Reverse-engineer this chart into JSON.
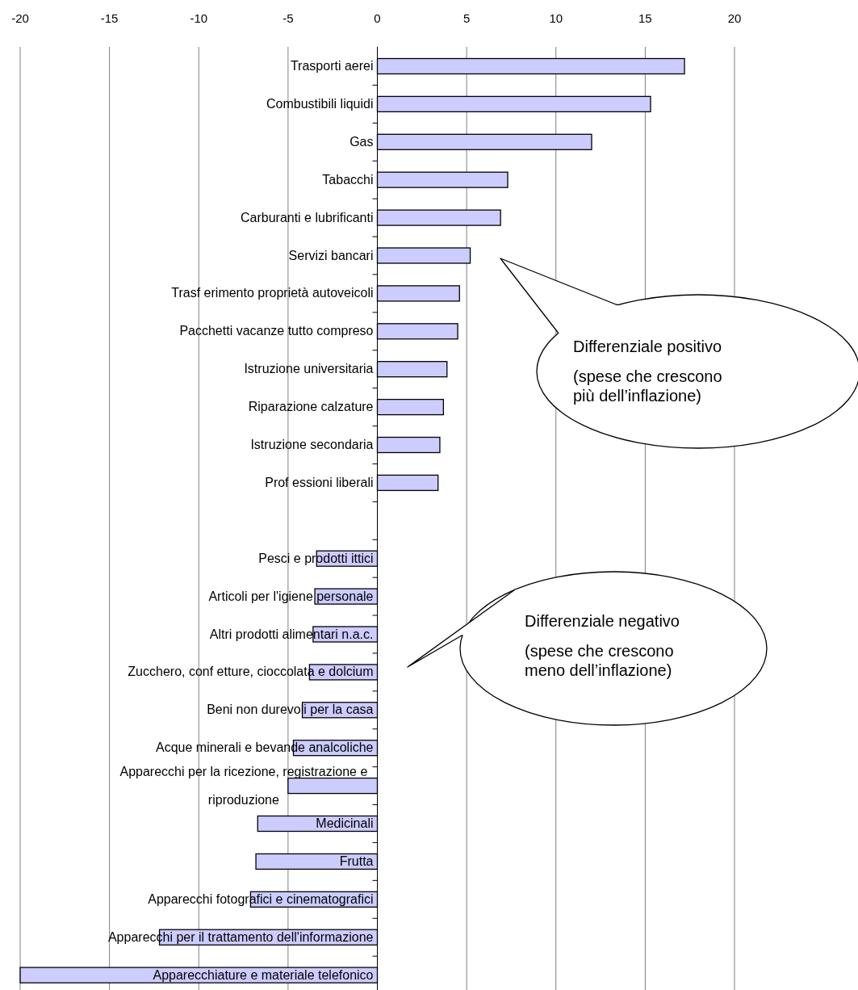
{
  "chart_data": {
    "type": "bar",
    "orientation": "horizontal",
    "categories": [
      "Trasporti aerei",
      "Combustibili liquidi",
      "Gas",
      "Tabacchi",
      "Carburanti e lubrificanti",
      "Servizi bancari",
      "Trasf erimento proprietà autoveicoli",
      "Pacchetti vacanze tutto compreso",
      "Istruzione universitaria",
      "Riparazione calzature",
      "Istruzione secondaria",
      "Prof essioni liberali",
      null,
      "Pesci e prodotti ittici",
      "Articoli per l'igiene personale",
      "Altri prodotti alimentari n.a.c.",
      "Zucchero, conf etture, cioccolata e dolcium",
      "Beni non durevoli per la casa",
      "Acque minerali e bevande analcoliche",
      "Apparecchi per la ricezione, registrazione e riproduzione",
      "Medicinali",
      "Frutta",
      "Apparecchi fotografici e cinematografici",
      "Apparecchi per il trattamento dell'informazione",
      "Apparecchiature e materiale telefonico"
    ],
    "values": [
      17.2,
      15.3,
      12.0,
      7.3,
      6.9,
      5.2,
      4.6,
      4.5,
      3.9,
      3.7,
      3.5,
      3.4,
      null,
      -3.4,
      -3.5,
      -3.6,
      -3.8,
      -4.2,
      -4.7,
      -5.0,
      -6.7,
      -6.8,
      -7.1,
      -12.2,
      -20.0
    ],
    "color": "#ccccff",
    "xlim": [
      -20,
      20
    ],
    "xticks": [
      -20,
      -15,
      -10,
      -5,
      0,
      5,
      10,
      15,
      20
    ],
    "grid": "x",
    "annotations": [
      "Differenziale positivo\n(spese che crescono\npiù dell’inflazione)",
      "Differenziale negativo\n(spese che crescono\nmeno dell’inflazione)"
    ]
  }
}
